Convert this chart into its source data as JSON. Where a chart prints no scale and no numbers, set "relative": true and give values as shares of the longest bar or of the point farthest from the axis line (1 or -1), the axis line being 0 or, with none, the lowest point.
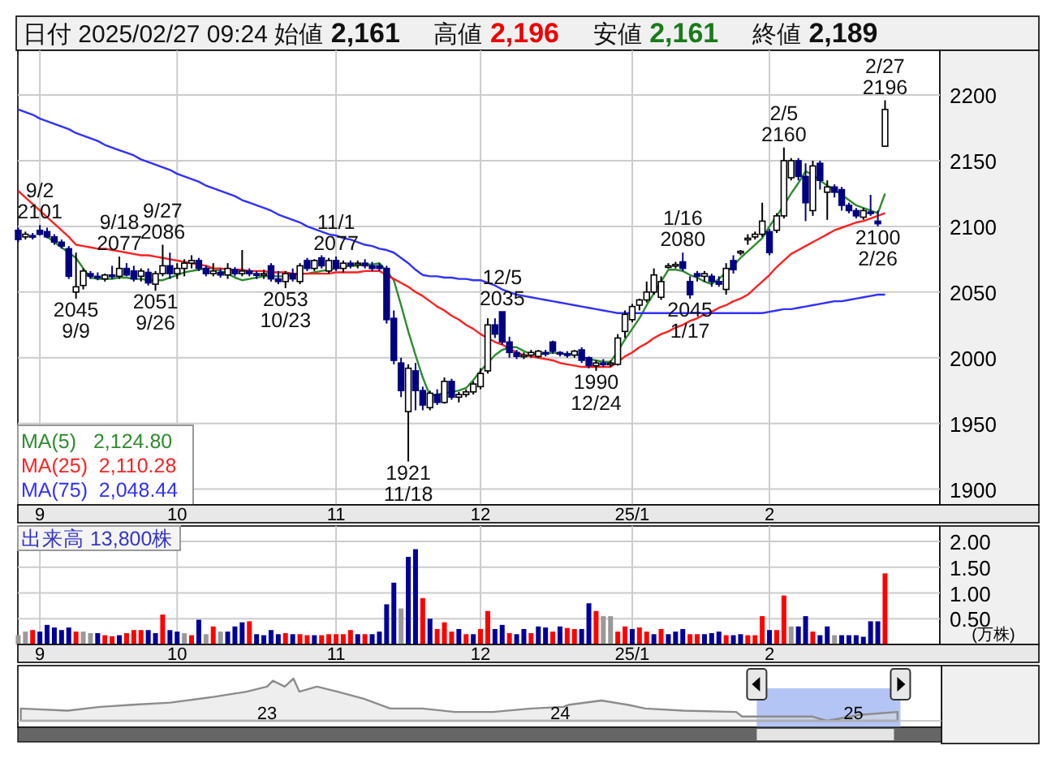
{
  "chart_data": [
    {
      "type": "candlestick",
      "title": "日付 2025/02/27 09:24 始値 2,161 高値 2,196 安値 2,161 終値 2,189",
      "categories": [
        null,
        null,
        null,
        "9",
        null,
        null,
        null,
        null,
        null,
        null,
        null,
        null,
        null,
        null,
        null,
        null,
        null,
        null,
        null,
        null,
        null,
        null,
        "10",
        null,
        null,
        null,
        null,
        null,
        null,
        null,
        null,
        null,
        null,
        null,
        null,
        null,
        null,
        null,
        null,
        null,
        null,
        null,
        null,
        null,
        "11",
        null,
        null,
        null,
        null,
        null,
        null,
        null,
        null,
        null,
        null,
        null,
        null,
        null,
        null,
        null,
        null,
        null,
        null,
        null,
        "12",
        null,
        null,
        null,
        null,
        null,
        null,
        null,
        null,
        null,
        null,
        null,
        null,
        null,
        null,
        null,
        null,
        null,
        null,
        null,
        null,
        "25/1",
        null,
        null,
        null,
        null,
        null,
        null,
        null,
        null,
        null,
        null,
        null,
        null,
        null,
        null,
        null,
        null,
        null,
        null,
        "2",
        null,
        null,
        null,
        null,
        null,
        null,
        null,
        null,
        null,
        null,
        null,
        null,
        null,
        null,
        null,
        null
      ],
      "ohlc": [
        [
          2097,
          2099,
          2088,
          2090
        ],
        [
          2092,
          2096,
          2090,
          2094
        ],
        [
          2093,
          2095,
          2090,
          2092
        ],
        [
          2097,
          2101,
          2093,
          2094
        ],
        [
          2096,
          2099,
          2091,
          2092
        ],
        [
          2092,
          2094,
          2086,
          2088
        ],
        [
          2088,
          2090,
          2083,
          2085
        ],
        [
          2083,
          2085,
          2060,
          2062
        ],
        [
          2050,
          2080,
          2045,
          2054
        ],
        [
          2055,
          2068,
          2052,
          2066
        ],
        [
          2064,
          2066,
          2060,
          2062
        ],
        [
          2062,
          2065,
          2059,
          2061
        ],
        [
          2060,
          2064,
          2058,
          2063
        ],
        [
          2063,
          2070,
          2060,
          2062
        ],
        [
          2062,
          2077,
          2060,
          2068
        ],
        [
          2068,
          2072,
          2062,
          2063
        ],
        [
          2066,
          2070,
          2058,
          2060
        ],
        [
          2062,
          2068,
          2058,
          2066
        ],
        [
          2065,
          2068,
          2055,
          2057
        ],
        [
          2056,
          2066,
          2051,
          2064
        ],
        [
          2064,
          2086,
          2062,
          2070
        ],
        [
          2070,
          2080,
          2060,
          2064
        ],
        [
          2064,
          2072,
          2060,
          2068
        ],
        [
          2068,
          2075,
          2062,
          2072
        ],
        [
          2072,
          2078,
          2068,
          2074
        ],
        [
          2074,
          2076,
          2066,
          2068
        ],
        [
          2068,
          2070,
          2062,
          2064
        ],
        [
          2064,
          2072,
          2062,
          2066
        ],
        [
          2065,
          2068,
          2061,
          2063
        ],
        [
          2063,
          2072,
          2060,
          2068
        ],
        [
          2067,
          2069,
          2062,
          2064
        ],
        [
          2064,
          2082,
          2062,
          2066
        ],
        [
          2066,
          2068,
          2062,
          2064
        ],
        [
          2064,
          2066,
          2060,
          2063
        ],
        [
          2063,
          2067,
          2060,
          2064
        ],
        [
          2070,
          2072,
          2058,
          2060
        ],
        [
          2060,
          2066,
          2056,
          2058
        ],
        [
          2058,
          2066,
          2053,
          2064
        ],
        [
          2064,
          2068,
          2058,
          2060
        ],
        [
          2058,
          2072,
          2056,
          2070
        ],
        [
          2074,
          2076,
          2066,
          2068
        ],
        [
          2068,
          2075,
          2066,
          2074
        ],
        [
          2076,
          2078,
          2068,
          2070
        ],
        [
          2066,
          2076,
          2064,
          2074
        ],
        [
          2074,
          2077,
          2066,
          2068
        ],
        [
          2068,
          2074,
          2065,
          2072
        ],
        [
          2072,
          2074,
          2068,
          2070
        ],
        [
          2071,
          2074,
          2068,
          2072
        ],
        [
          2072,
          2075,
          2068,
          2070
        ],
        [
          2070,
          2073,
          2066,
          2068
        ],
        [
          2070,
          2072,
          2066,
          2068
        ],
        [
          2068,
          2070,
          2026,
          2029
        ],
        [
          2030,
          2036,
          1995,
          1998
        ],
        [
          1996,
          2000,
          1970,
          1975
        ],
        [
          1959,
          1995,
          1921,
          1992
        ],
        [
          1990,
          1996,
          1960,
          1975
        ],
        [
          1975,
          1978,
          1960,
          1964
        ],
        [
          1962,
          1975,
          1960,
          1973
        ],
        [
          1972,
          1976,
          1964,
          1966
        ],
        [
          1966,
          1985,
          1965,
          1982
        ],
        [
          1982,
          1984,
          1968,
          1970
        ],
        [
          1970,
          1974,
          1966,
          1972
        ],
        [
          1972,
          1976,
          1970,
          1974
        ],
        [
          1974,
          1982,
          1972,
          1980
        ],
        [
          1978,
          1992,
          1976,
          1988
        ],
        [
          1990,
          2030,
          1988,
          2025
        ],
        [
          2025,
          2030,
          2015,
          2018
        ],
        [
          2035,
          2035,
          2010,
          2012
        ],
        [
          2012,
          2016,
          2000,
          2004
        ],
        [
          2004,
          2006,
          1999,
          2001
        ],
        [
          2001,
          2004,
          1999,
          2002
        ],
        [
          2002,
          2006,
          2000,
          2004
        ],
        [
          2001,
          2006,
          2000,
          2005
        ],
        [
          2004,
          2006,
          2001,
          2003
        ],
        [
          2012,
          2013,
          2003,
          2005
        ],
        [
          2004,
          2005,
          2001,
          2003
        ],
        [
          2003,
          2005,
          2000,
          2002
        ],
        [
          2002,
          2006,
          2000,
          2005
        ],
        [
          2006,
          2008,
          1996,
          1998
        ],
        [
          2000,
          2001,
          1992,
          1994
        ],
        [
          1994,
          1998,
          1990,
          1996
        ],
        [
          1996,
          1999,
          1993,
          1995
        ],
        [
          1995,
          1998,
          1993,
          1996
        ],
        [
          1995,
          2018,
          1994,
          2015
        ],
        [
          2020,
          2036,
          2015,
          2033
        ],
        [
          2029,
          2041,
          2027,
          2039
        ],
        [
          2040,
          2045,
          2036,
          2044
        ],
        [
          2044,
          2058,
          2042,
          2050
        ],
        [
          2050,
          2068,
          2048,
          2063
        ],
        [
          2046,
          2062,
          2044,
          2058
        ],
        [
          2070,
          2072,
          2068,
          2070
        ],
        [
          2070,
          2073,
          2068,
          2071
        ],
        [
          2073,
          2080,
          2066,
          2068
        ],
        [
          2058,
          2062,
          2045,
          2048
        ],
        [
          2064,
          2066,
          2058,
          2062
        ],
        [
          2062,
          2066,
          2058,
          2064
        ],
        [
          2062,
          2064,
          2054,
          2058
        ],
        [
          2058,
          2062,
          2054,
          2056
        ],
        [
          2052,
          2072,
          2048,
          2068
        ],
        [
          2074,
          2078,
          2064,
          2067
        ],
        [
          2080,
          2082,
          2078,
          2081
        ],
        [
          2090,
          2094,
          2086,
          2091
        ],
        [
          2092,
          2096,
          2090,
          2094
        ],
        [
          2094,
          2118,
          2092,
          2104
        ],
        [
          2096,
          2098,
          2078,
          2080
        ],
        [
          2097,
          2110,
          2095,
          2108
        ],
        [
          2108,
          2160,
          2106,
          2150
        ],
        [
          2137,
          2152,
          2135,
          2150
        ],
        [
          2150,
          2152,
          2135,
          2138
        ],
        [
          2138,
          2148,
          2104,
          2118
        ],
        [
          2112,
          2150,
          2108,
          2146
        ],
        [
          2148,
          2150,
          2128,
          2135
        ],
        [
          2126,
          2135,
          2105,
          2130
        ],
        [
          2130,
          2132,
          2122,
          2126
        ],
        [
          2128,
          2130,
          2112,
          2116
        ],
        [
          2116,
          2118,
          2110,
          2112
        ],
        [
          2112,
          2114,
          2106,
          2108
        ],
        [
          2107,
          2114,
          2105,
          2112
        ],
        [
          2111,
          2124,
          2108,
          2110
        ],
        [
          2104,
          2112,
          2100,
          2102
        ],
        [
          2161,
          2196,
          2161,
          2189
        ]
      ],
      "series": [
        {
          "name": "MA(5)   2,124.80",
          "type": "line",
          "color": "#2e8b2e",
          "values": [
            null,
            null,
            null,
            null,
            2092,
            2088,
            2084,
            2080,
            2076,
            2068,
            2061,
            2060,
            2060,
            2060,
            2061,
            2061,
            2060,
            2060,
            2059,
            2059,
            2059,
            2061,
            2063,
            2065,
            2066,
            2067,
            2068,
            2068,
            2066,
            2064,
            2061,
            2059,
            2060,
            2061,
            2062,
            2062,
            2062,
            2062,
            2063,
            2064,
            2064,
            2065,
            2066,
            2067,
            2068,
            2069,
            2070,
            2070,
            2071,
            2071,
            2072,
            2066,
            2059,
            2040,
            2020,
            2002,
            1985,
            1971,
            1972,
            1973,
            1974,
            1975,
            1977,
            1983,
            1990,
            1996,
            2002,
            2006,
            2008,
            2008,
            2005,
            2003,
            2003,
            2003,
            2004,
            2003,
            2003,
            2003,
            2001,
            1999,
            1998,
            1997,
            1997,
            2005,
            2014,
            2022,
            2030,
            2040,
            2049,
            2058,
            2067,
            2067,
            2066,
            2063,
            2061,
            2058,
            2056,
            2060,
            2065,
            2070,
            2076,
            2081,
            2086,
            2091,
            2100,
            2108,
            2116,
            2125,
            2133,
            2142,
            2139,
            2135,
            2131,
            2128,
            2124,
            2120,
            2116,
            2114,
            2112,
            2110,
            2125
          ]
        },
        {
          "name": "MA(25)  2,110.28",
          "type": "line",
          "color": "#ff2020",
          "values": [
            2127,
            2122,
            2117,
            2112,
            2107,
            2102,
            2097,
            2092,
            2086,
            2085,
            2084,
            2083,
            2083,
            2082,
            2081,
            2080,
            2079,
            2078,
            2078,
            2077,
            2076,
            2075,
            2074,
            2073,
            2072,
            2071,
            2070,
            2068,
            2068,
            2067,
            2067,
            2067,
            2066,
            2066,
            2066,
            2065,
            2065,
            2065,
            2064,
            2064,
            2064,
            2064,
            2064,
            2064,
            2065,
            2065,
            2065,
            2065,
            2066,
            2066,
            2066,
            2063,
            2060,
            2057,
            2054,
            2050,
            2047,
            2043,
            2039,
            2036,
            2032,
            2029,
            2025,
            2022,
            2018,
            2015,
            2012,
            2010,
            2007,
            2004,
            2002,
            2001,
            2000,
            1999,
            1998,
            1996,
            1995,
            1994,
            1993,
            1993,
            1993,
            1993,
            1993,
            1997,
            2001,
            2004,
            2008,
            2011,
            2015,
            2018,
            2020,
            2023,
            2025,
            2028,
            2030,
            2033,
            2035,
            2038,
            2040,
            2043,
            2045,
            2048,
            2053,
            2058,
            2063,
            2069,
            2074,
            2079,
            2082,
            2085,
            2088,
            2091,
            2094,
            2097,
            2099,
            2101,
            2103,
            2104,
            2106,
            2108,
            2110
          ]
        },
        {
          "name": "MA(75)  2,048.44",
          "type": "line",
          "color": "#3030ff",
          "values": [
            2189,
            2187,
            2185,
            2182,
            2180,
            2178,
            2176,
            2174,
            2171,
            2169,
            2167,
            2165,
            2162,
            2160,
            2158,
            2156,
            2154,
            2151,
            2149,
            2147,
            2145,
            2143,
            2140,
            2138,
            2136,
            2134,
            2131,
            2129,
            2127,
            2125,
            2123,
            2120,
            2118,
            2116,
            2114,
            2112,
            2109,
            2107,
            2105,
            2103,
            2100,
            2098,
            2096,
            2094,
            2093,
            2091,
            2090,
            2088,
            2086,
            2085,
            2083,
            2082,
            2080,
            2076,
            2072,
            2067,
            2063,
            2062,
            2062,
            2061,
            2061,
            2060,
            2060,
            2059,
            2059,
            2057,
            2055,
            2052,
            2050,
            2048,
            2047,
            2046,
            2045,
            2044,
            2043,
            2042,
            2041,
            2040,
            2039,
            2038,
            2037,
            2036,
            2035,
            2034,
            2034,
            2034,
            2034,
            2034,
            2034,
            2034,
            2034,
            2034,
            2034,
            2034,
            2034,
            2034,
            2034,
            2034,
            2034,
            2034,
            2034,
            2034,
            2034,
            2034,
            2035,
            2036,
            2037,
            2037,
            2038,
            2039,
            2040,
            2041,
            2042,
            2043,
            2043,
            2044,
            2045,
            2046,
            2047,
            2048,
            2048
          ]
        }
      ],
      "annotations": [
        {
          "text": "9/2\n2101",
          "y": 2101
        },
        {
          "text": "2045\n9/9",
          "y": 2045
        },
        {
          "text": "9/18\n2077",
          "y": 2077
        },
        {
          "text": "2051\n9/26",
          "y": 2051
        },
        {
          "text": "9/27\n2086",
          "y": 2086
        },
        {
          "text": "2053\n10/23",
          "y": 2053
        },
        {
          "text": "11/1\n2077",
          "y": 2077
        },
        {
          "text": "1921\n11/18",
          "y": 1921
        },
        {
          "text": "12/5\n2035",
          "y": 2035
        },
        {
          "text": "1990\n12/24",
          "y": 1990
        },
        {
          "text": "1/16\n2080",
          "y": 2080
        },
        {
          "text": "2045\n1/17",
          "y": 2045
        },
        {
          "text": "2/5\n2160",
          "y": 2160
        },
        {
          "text": "2100\n2/26",
          "y": 2100
        },
        {
          "text": "2/27\n2196",
          "y": 2196
        }
      ],
      "ylim": [
        1888,
        2234
      ],
      "yticks": [
        1900,
        1950,
        2000,
        2050,
        2100,
        2150,
        2200
      ],
      "grid": true,
      "legend": "bottom left"
    },
    {
      "type": "bar",
      "title": "出来高 13,800株",
      "ylabel": "(万株)",
      "categories": [
        null,
        null,
        null,
        "9",
        null,
        null,
        null,
        null,
        null,
        null,
        null,
        null,
        null,
        null,
        null,
        null,
        null,
        null,
        null,
        null,
        null,
        null,
        "10",
        null,
        null,
        null,
        null,
        null,
        null,
        null,
        null,
        null,
        null,
        null,
        null,
        null,
        null,
        null,
        null,
        null,
        null,
        null,
        null,
        null,
        "11",
        null,
        null,
        null,
        null,
        null,
        null,
        null,
        null,
        null,
        null,
        null,
        null,
        null,
        null,
        null,
        null,
        null,
        null,
        null,
        "12",
        null,
        null,
        null,
        null,
        null,
        null,
        null,
        null,
        null,
        null,
        null,
        null,
        null,
        null,
        null,
        null,
        null,
        null,
        null,
        null,
        "25/1",
        null,
        null,
        null,
        null,
        null,
        null,
        null,
        null,
        null,
        null,
        null,
        null,
        null,
        null,
        null,
        null,
        null,
        null,
        "2",
        null,
        null,
        null,
        null,
        null,
        null,
        null,
        null,
        null,
        null,
        null,
        null,
        null,
        null,
        null,
        null
      ],
      "values": [
        0.18,
        0.25,
        0.28,
        0.25,
        0.38,
        0.33,
        0.28,
        0.33,
        0.25,
        0.25,
        0.22,
        0.22,
        0.18,
        0.16,
        0.18,
        0.22,
        0.28,
        0.28,
        0.28,
        0.22,
        0.58,
        0.28,
        0.25,
        0.22,
        0.18,
        0.48,
        0.2,
        0.35,
        0.25,
        0.25,
        0.35,
        0.43,
        0.45,
        0.2,
        0.18,
        0.28,
        0.2,
        0.22,
        0.2,
        0.2,
        0.18,
        0.18,
        0.18,
        0.2,
        0.2,
        0.2,
        0.28,
        0.2,
        0.2,
        0.2,
        0.25,
        0.78,
        1.2,
        0.7,
        1.7,
        1.85,
        0.9,
        0.5,
        0.3,
        0.43,
        0.25,
        0.3,
        0.2,
        0.2,
        0.3,
        0.65,
        0.3,
        0.38,
        0.22,
        0.2,
        0.3,
        0.22,
        0.35,
        0.33,
        0.25,
        0.35,
        0.32,
        0.3,
        0.3,
        0.8,
        0.65,
        0.55,
        0.55,
        0.25,
        0.35,
        0.3,
        0.33,
        0.25,
        0.2,
        0.3,
        0.2,
        0.25,
        0.3,
        0.2,
        0.2,
        0.2,
        0.22,
        0.25,
        0.18,
        0.18,
        0.2,
        0.18,
        0.18,
        0.55,
        0.28,
        0.28,
        0.95,
        0.35,
        0.35,
        0.55,
        0.25,
        0.18,
        0.35,
        0.18,
        0.18,
        0.18,
        0.18,
        0.15,
        0.45,
        0.45,
        1.38
      ],
      "colors": [
        "#999999",
        "#999999",
        "#ff0000",
        "#000099",
        "#000099",
        "#000099",
        "#000099",
        "#000099",
        "#ff0000",
        "#999999",
        "#999999",
        "#000099",
        "#ff0000",
        "#ff0000",
        "#000099",
        "#ff0000",
        "#ff0000",
        "#ff0000",
        "#000099",
        "#000099",
        "#ff0000",
        "#000099",
        "#000099",
        "#999999",
        "#ff0000",
        "#000099",
        "#999999",
        "#ff0000",
        "#999999",
        "#000099",
        "#000099",
        "#000099",
        "#ff0000",
        "#000099",
        "#000099",
        "#000099",
        "#000099",
        "#ff0000",
        "#000099",
        "#ff0000",
        "#ff0000",
        "#000099",
        "#ff0000",
        "#ff0000",
        "#ff0000",
        "#ff0000",
        "#ff0000",
        "#000099",
        "#ff0000",
        "#000099",
        "#000099",
        "#000099",
        "#000099",
        "#999999",
        "#000099",
        "#000099",
        "#ff0000",
        "#000099",
        "#ff0000",
        "#ff0000",
        "#ff0000",
        "#000099",
        "#ff0000",
        "#000099",
        "#ff0000",
        "#ff0000",
        "#000099",
        "#000099",
        "#ff0000",
        "#000099",
        "#000099",
        "#ff0000",
        "#000099",
        "#000099",
        "#ff0000",
        "#000099",
        "#ff0000",
        "#ff0000",
        "#000099",
        "#000099",
        "#ff0000",
        "#999999",
        "#999999",
        "#ff0000",
        "#ff0000",
        "#000099",
        "#ff0000",
        "#ff0000",
        "#000099",
        "#ff0000",
        "#000099",
        "#000099",
        "#000099",
        "#ff0000",
        "#ff0000",
        "#000099",
        "#000099",
        "#000099",
        "#ff0000",
        "#000099",
        "#000099",
        "#ff0000",
        "#ff0000",
        "#ff0000",
        "#000099",
        "#ff0000",
        "#ff0000",
        "#999999",
        "#000099",
        "#000099",
        "#ff0000",
        "#000099",
        "#000099",
        "#999999",
        "#000099",
        "#000099",
        "#000099",
        "#000099",
        "#000099",
        "#000099",
        "#ff0000"
      ],
      "ylim": [
        0,
        2.3
      ],
      "yticks": [
        {
          "value": 0.5,
          "label": "0.50"
        },
        {
          "value": 1,
          "label": "1.00"
        },
        {
          "value": 1.5,
          "label": "1.50"
        },
        {
          "value": 2,
          "label": "2.00"
        }
      ],
      "grid": true
    },
    {
      "type": "area",
      "relative": true,
      "color": "#8c8c8c",
      "tick_labels": "x",
      "x": [
        2022.16,
        2022.32,
        2022.43,
        2022.54,
        2022.67,
        2022.82,
        2022.93,
        2023.0,
        2023.02,
        2023.06,
        2023.09,
        2023.11,
        2023.17,
        2023.24,
        2023.33,
        2023.42,
        2023.53,
        2023.64,
        2023.77,
        2023.9,
        2024.01,
        2024.03,
        2024.14,
        2024.23,
        2024.29,
        2024.42,
        2024.6,
        2024.62,
        2024.71,
        2024.86,
        2024.91,
        2025.02,
        2025.15
      ],
      "values": [
        0.29,
        0.24,
        0.33,
        0.38,
        0.43,
        0.57,
        0.69,
        0.81,
        0.95,
        0.81,
        1,
        0.69,
        0.81,
        0.69,
        0.52,
        0.29,
        0.29,
        0.21,
        0.21,
        0.29,
        0.33,
        0.38,
        0.48,
        0.38,
        0.29,
        0.24,
        0.21,
        0.1,
        0.1,
        0.1,
        0,
        0.14,
        0.21
      ],
      "xlim": [
        2022.15,
        2025.3
      ],
      "xticks": [
        {
          "value": 2023,
          "label": "23"
        },
        {
          "value": 2024,
          "label": "24"
        },
        {
          "value": 2025,
          "label": "25"
        }
      ],
      "bands": [
        {
          "axis": "x",
          "from": 2024.67,
          "to": 2025.16,
          "color": "#b4c4f4"
        }
      ]
    }
  ]
}
